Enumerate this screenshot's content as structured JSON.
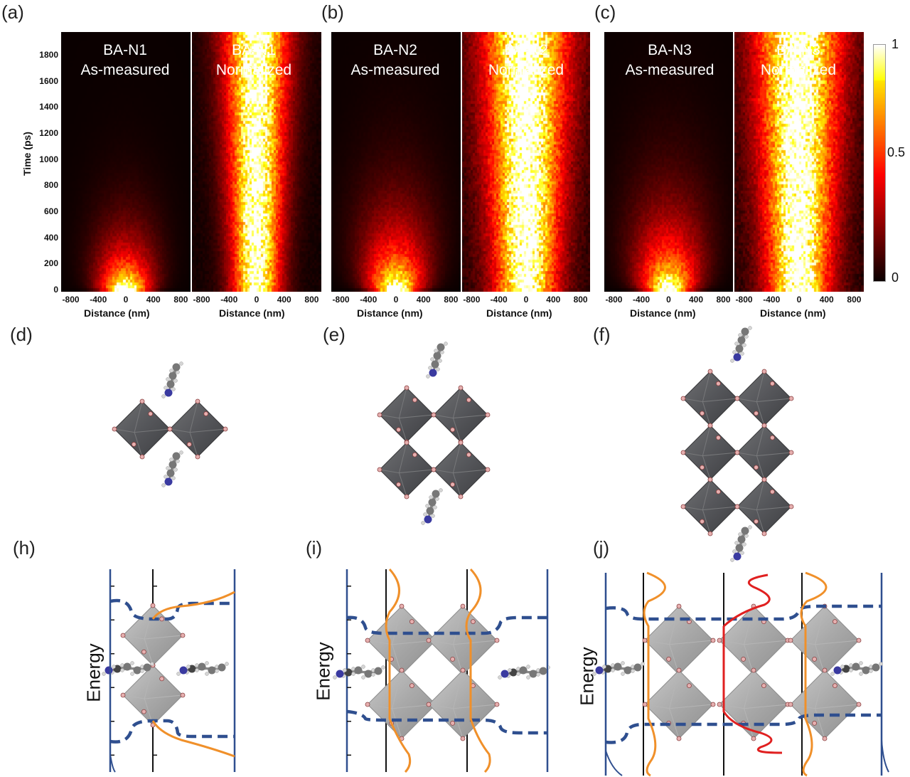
{
  "panel_labels": {
    "a": "(a)",
    "b": "(b)",
    "c": "(c)",
    "d": "(d)",
    "e": "(e)",
    "f": "(f)",
    "h": "(h)",
    "i": "(i)",
    "j": "(j)"
  },
  "heatmaps": [
    {
      "panel": "a",
      "sample": "BA-N1",
      "left_mode": "As-measured",
      "right_mode": "Normalized"
    },
    {
      "panel": "b",
      "sample": "BA-N2",
      "left_mode": "As-measured",
      "right_mode": "Normalized"
    },
    {
      "panel": "c",
      "sample": "BA-N3",
      "left_mode": "As-measured",
      "right_mode": "Normalized"
    }
  ],
  "axes": {
    "ylabel": "Time (ps)",
    "xlabel": "Distance (nm)",
    "y_ticks": [
      "0",
      "200",
      "400",
      "600",
      "800",
      "1000",
      "1200",
      "1400",
      "1600",
      "1800"
    ],
    "x_ticks": [
      "-800",
      "-400",
      "0",
      "400",
      "800"
    ]
  },
  "colorbar": {
    "ticks": [
      "1",
      "0.5",
      "0"
    ]
  },
  "energy_label": "Energy",
  "colors": {
    "blue": "#2f4f8f",
    "orange": "#f0902a",
    "red": "#e02020",
    "octa": "#58595b"
  }
}
